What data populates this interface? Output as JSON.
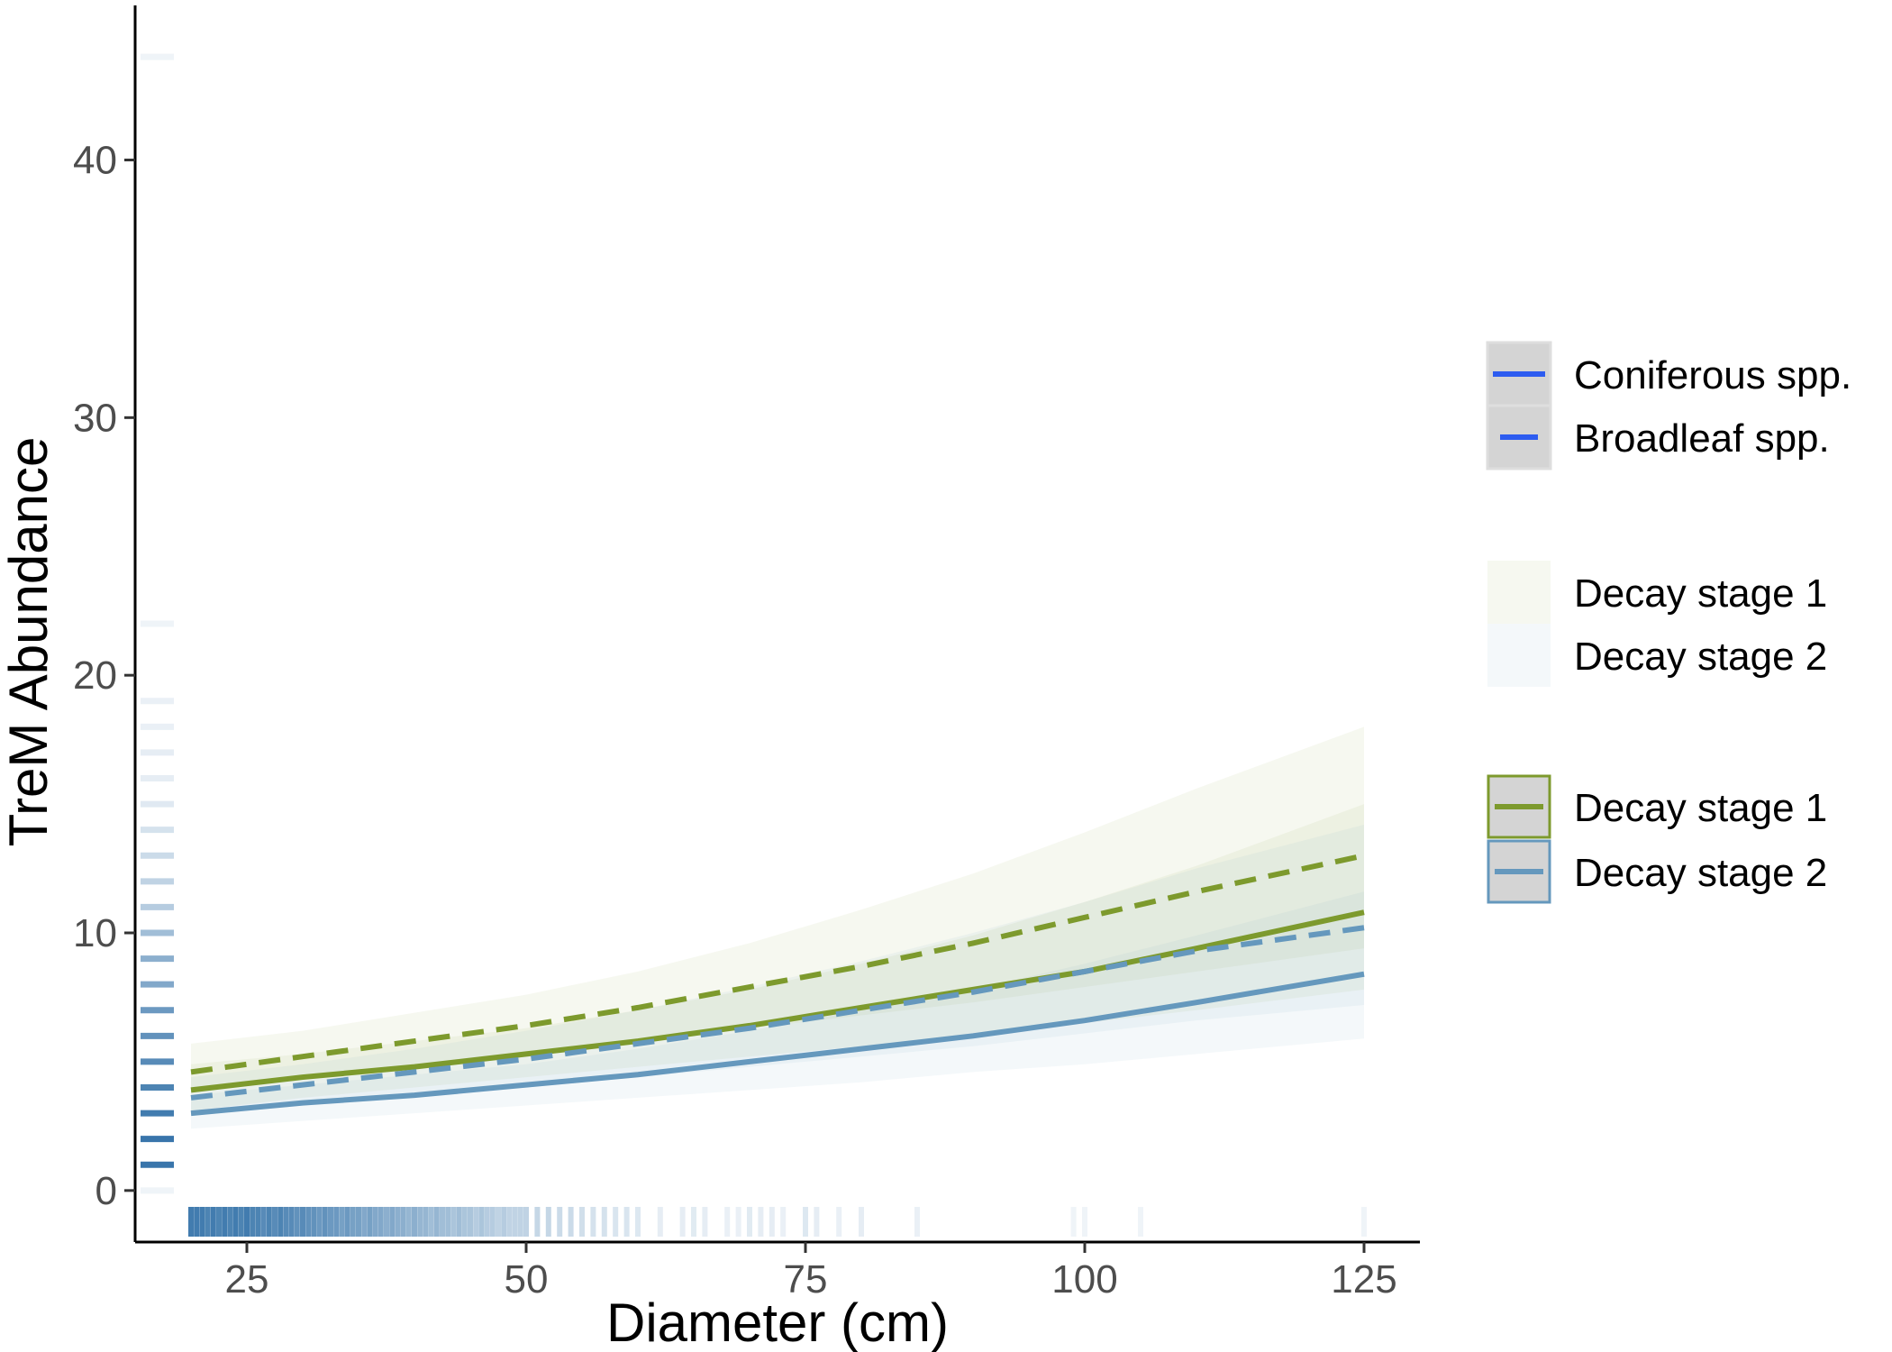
{
  "chart_data": {
    "type": "line",
    "title": "",
    "xlabel": "Diameter (cm)",
    "ylabel": "TreM Abundance",
    "xlim": [
      15,
      130
    ],
    "ylim": [
      -2,
      46
    ],
    "xticks": [
      25,
      50,
      75,
      100,
      125
    ],
    "yticks": [
      0,
      10,
      20,
      30,
      40
    ],
    "x_tick_labels": [
      "25",
      "50",
      "75",
      "100",
      "125"
    ],
    "y_tick_labels": [
      "0",
      "10",
      "20",
      "30",
      "40"
    ],
    "grid": false,
    "legend_position": "right",
    "colors": {
      "decay_stage_1": "#7d9a2d",
      "decay_stage_2": "#6598bd",
      "rug": "#2e6ea6",
      "linetype_key": "#2d5cf0"
    },
    "x": [
      20,
      30,
      40,
      50,
      60,
      70,
      80,
      90,
      100,
      110,
      125
    ],
    "series": [
      {
        "name": "Coniferous spp. / Decay stage 1",
        "decay_stage": 1,
        "linetype": "solid",
        "values": [
          3.9,
          4.4,
          4.8,
          5.3,
          5.8,
          6.4,
          7.1,
          7.8,
          8.5,
          9.4,
          10.8
        ],
        "lower": [
          3.1,
          3.6,
          4.0,
          4.4,
          4.8,
          5.2,
          5.6,
          6.0,
          6.5,
          7.0,
          7.8
        ],
        "upper": [
          4.9,
          5.3,
          5.8,
          6.3,
          7.0,
          7.8,
          8.8,
          9.9,
          11.2,
          12.6,
          15.0
        ]
      },
      {
        "name": "Broadleaf spp. / Decay stage 1",
        "decay_stage": 1,
        "linetype": "dashed",
        "values": [
          4.6,
          5.2,
          5.8,
          6.4,
          7.1,
          7.9,
          8.7,
          9.6,
          10.6,
          11.6,
          13.0
        ],
        "lower": [
          3.8,
          4.3,
          4.8,
          5.3,
          5.8,
          6.3,
          6.8,
          7.3,
          7.9,
          8.5,
          9.4
        ],
        "upper": [
          5.7,
          6.2,
          6.9,
          7.6,
          8.5,
          9.6,
          10.9,
          12.3,
          13.9,
          15.6,
          18.0
        ]
      },
      {
        "name": "Coniferous spp. / Decay stage 2",
        "decay_stage": 2,
        "linetype": "solid",
        "values": [
          3.0,
          3.4,
          3.7,
          4.1,
          4.5,
          5.0,
          5.5,
          6.0,
          6.6,
          7.3,
          8.4
        ],
        "lower": [
          2.4,
          2.7,
          3.0,
          3.3,
          3.6,
          3.9,
          4.2,
          4.6,
          4.9,
          5.3,
          5.9
        ],
        "upper": [
          3.7,
          4.1,
          4.5,
          4.9,
          5.5,
          6.2,
          7.0,
          7.8,
          8.8,
          9.9,
          11.6
        ]
      },
      {
        "name": "Broadleaf spp. / Decay stage 2",
        "decay_stage": 2,
        "linetype": "dashed",
        "values": [
          3.6,
          4.1,
          4.6,
          5.1,
          5.7,
          6.3,
          7.0,
          7.7,
          8.5,
          9.3,
          10.2
        ],
        "lower": [
          2.9,
          3.3,
          3.7,
          4.0,
          4.4,
          4.8,
          5.2,
          5.6,
          6.1,
          6.6,
          7.2
        ],
        "upper": [
          4.4,
          4.9,
          5.5,
          6.2,
          7.0,
          7.9,
          8.9,
          10.0,
          11.2,
          12.5,
          14.2
        ]
      }
    ],
    "rug_x": [
      {
        "value": 20,
        "alpha": 0.9
      },
      {
        "value": 20.5,
        "alpha": 0.9
      },
      {
        "value": 21,
        "alpha": 0.9
      },
      {
        "value": 21.5,
        "alpha": 0.85
      },
      {
        "value": 22,
        "alpha": 0.9
      },
      {
        "value": 22.5,
        "alpha": 0.85
      },
      {
        "value": 23,
        "alpha": 0.9
      },
      {
        "value": 23.5,
        "alpha": 0.85
      },
      {
        "value": 24,
        "alpha": 0.9
      },
      {
        "value": 24.5,
        "alpha": 0.85
      },
      {
        "value": 25,
        "alpha": 0.9
      },
      {
        "value": 25.5,
        "alpha": 0.85
      },
      {
        "value": 26,
        "alpha": 0.85
      },
      {
        "value": 26.5,
        "alpha": 0.8
      },
      {
        "value": 27,
        "alpha": 0.85
      },
      {
        "value": 27.5,
        "alpha": 0.8
      },
      {
        "value": 28,
        "alpha": 0.85
      },
      {
        "value": 28.5,
        "alpha": 0.8
      },
      {
        "value": 29,
        "alpha": 0.8
      },
      {
        "value": 29.5,
        "alpha": 0.75
      },
      {
        "value": 30,
        "alpha": 0.8
      },
      {
        "value": 30.5,
        "alpha": 0.75
      },
      {
        "value": 31,
        "alpha": 0.75
      },
      {
        "value": 31.5,
        "alpha": 0.7
      },
      {
        "value": 32,
        "alpha": 0.75
      },
      {
        "value": 32.5,
        "alpha": 0.7
      },
      {
        "value": 33,
        "alpha": 0.7
      },
      {
        "value": 33.5,
        "alpha": 0.65
      },
      {
        "value": 34,
        "alpha": 0.7
      },
      {
        "value": 34.5,
        "alpha": 0.65
      },
      {
        "value": 35,
        "alpha": 0.65
      },
      {
        "value": 35.5,
        "alpha": 0.6
      },
      {
        "value": 36,
        "alpha": 0.65
      },
      {
        "value": 36.5,
        "alpha": 0.6
      },
      {
        "value": 37,
        "alpha": 0.6
      },
      {
        "value": 37.5,
        "alpha": 0.55
      },
      {
        "value": 38,
        "alpha": 0.6
      },
      {
        "value": 38.5,
        "alpha": 0.55
      },
      {
        "value": 39,
        "alpha": 0.55
      },
      {
        "value": 39.5,
        "alpha": 0.5
      },
      {
        "value": 40,
        "alpha": 0.55
      },
      {
        "value": 40.5,
        "alpha": 0.5
      },
      {
        "value": 41,
        "alpha": 0.5
      },
      {
        "value": 41.5,
        "alpha": 0.45
      },
      {
        "value": 42,
        "alpha": 0.5
      },
      {
        "value": 42.5,
        "alpha": 0.45
      },
      {
        "value": 43,
        "alpha": 0.45
      },
      {
        "value": 43.5,
        "alpha": 0.4
      },
      {
        "value": 44,
        "alpha": 0.45
      },
      {
        "value": 44.5,
        "alpha": 0.4
      },
      {
        "value": 45,
        "alpha": 0.4
      },
      {
        "value": 45.5,
        "alpha": 0.35
      },
      {
        "value": 46,
        "alpha": 0.4
      },
      {
        "value": 46.5,
        "alpha": 0.35
      },
      {
        "value": 47,
        "alpha": 0.35
      },
      {
        "value": 47.5,
        "alpha": 0.3
      },
      {
        "value": 48,
        "alpha": 0.35
      },
      {
        "value": 48.5,
        "alpha": 0.3
      },
      {
        "value": 49,
        "alpha": 0.3
      },
      {
        "value": 49.5,
        "alpha": 0.3
      },
      {
        "value": 50,
        "alpha": 0.3
      },
      {
        "value": 51,
        "alpha": 0.28
      },
      {
        "value": 52,
        "alpha": 0.28
      },
      {
        "value": 53,
        "alpha": 0.25
      },
      {
        "value": 54,
        "alpha": 0.25
      },
      {
        "value": 55,
        "alpha": 0.22
      },
      {
        "value": 56,
        "alpha": 0.2
      },
      {
        "value": 57,
        "alpha": 0.2
      },
      {
        "value": 58,
        "alpha": 0.18
      },
      {
        "value": 59,
        "alpha": 0.18
      },
      {
        "value": 60,
        "alpha": 0.16
      },
      {
        "value": 62,
        "alpha": 0.12
      },
      {
        "value": 64,
        "alpha": 0.12
      },
      {
        "value": 65,
        "alpha": 0.14
      },
      {
        "value": 66,
        "alpha": 0.12
      },
      {
        "value": 68,
        "alpha": 0.1
      },
      {
        "value": 69,
        "alpha": 0.1
      },
      {
        "value": 70,
        "alpha": 0.14
      },
      {
        "value": 71,
        "alpha": 0.12
      },
      {
        "value": 72,
        "alpha": 0.12
      },
      {
        "value": 73,
        "alpha": 0.1
      },
      {
        "value": 75,
        "alpha": 0.16
      },
      {
        "value": 76,
        "alpha": 0.12
      },
      {
        "value": 78,
        "alpha": 0.1
      },
      {
        "value": 80,
        "alpha": 0.12
      },
      {
        "value": 85,
        "alpha": 0.1
      },
      {
        "value": 99,
        "alpha": 0.08
      },
      {
        "value": 100,
        "alpha": 0.08
      },
      {
        "value": 105,
        "alpha": 0.08
      },
      {
        "value": 125,
        "alpha": 0.08
      }
    ],
    "rug_y": [
      {
        "value": 0,
        "alpha": 0.08
      },
      {
        "value": 1,
        "alpha": 0.95
      },
      {
        "value": 2,
        "alpha": 0.95
      },
      {
        "value": 3,
        "alpha": 0.9
      },
      {
        "value": 4,
        "alpha": 0.85
      },
      {
        "value": 5,
        "alpha": 0.8
      },
      {
        "value": 6,
        "alpha": 0.75
      },
      {
        "value": 7,
        "alpha": 0.7
      },
      {
        "value": 8,
        "alpha": 0.6
      },
      {
        "value": 9,
        "alpha": 0.55
      },
      {
        "value": 10,
        "alpha": 0.45
      },
      {
        "value": 11,
        "alpha": 0.35
      },
      {
        "value": 12,
        "alpha": 0.3
      },
      {
        "value": 13,
        "alpha": 0.25
      },
      {
        "value": 14,
        "alpha": 0.2
      },
      {
        "value": 15,
        "alpha": 0.15
      },
      {
        "value": 16,
        "alpha": 0.12
      },
      {
        "value": 17,
        "alpha": 0.12
      },
      {
        "value": 18,
        "alpha": 0.1
      },
      {
        "value": 19,
        "alpha": 0.1
      },
      {
        "value": 22,
        "alpha": 0.08
      },
      {
        "value": 44,
        "alpha": 0.08
      }
    ],
    "legend": {
      "linetype": [
        {
          "label": "Coniferous spp.",
          "linetype": "solid"
        },
        {
          "label": "Broadleaf spp.",
          "linetype": "dashed"
        }
      ],
      "fill": [
        {
          "label": "Decay stage 1",
          "decay_stage": 1
        },
        {
          "label": "Decay stage 2",
          "decay_stage": 2
        }
      ],
      "color": [
        {
          "label": "Decay stage 1",
          "decay_stage": 1
        },
        {
          "label": "Decay stage 2",
          "decay_stage": 2
        }
      ]
    }
  }
}
